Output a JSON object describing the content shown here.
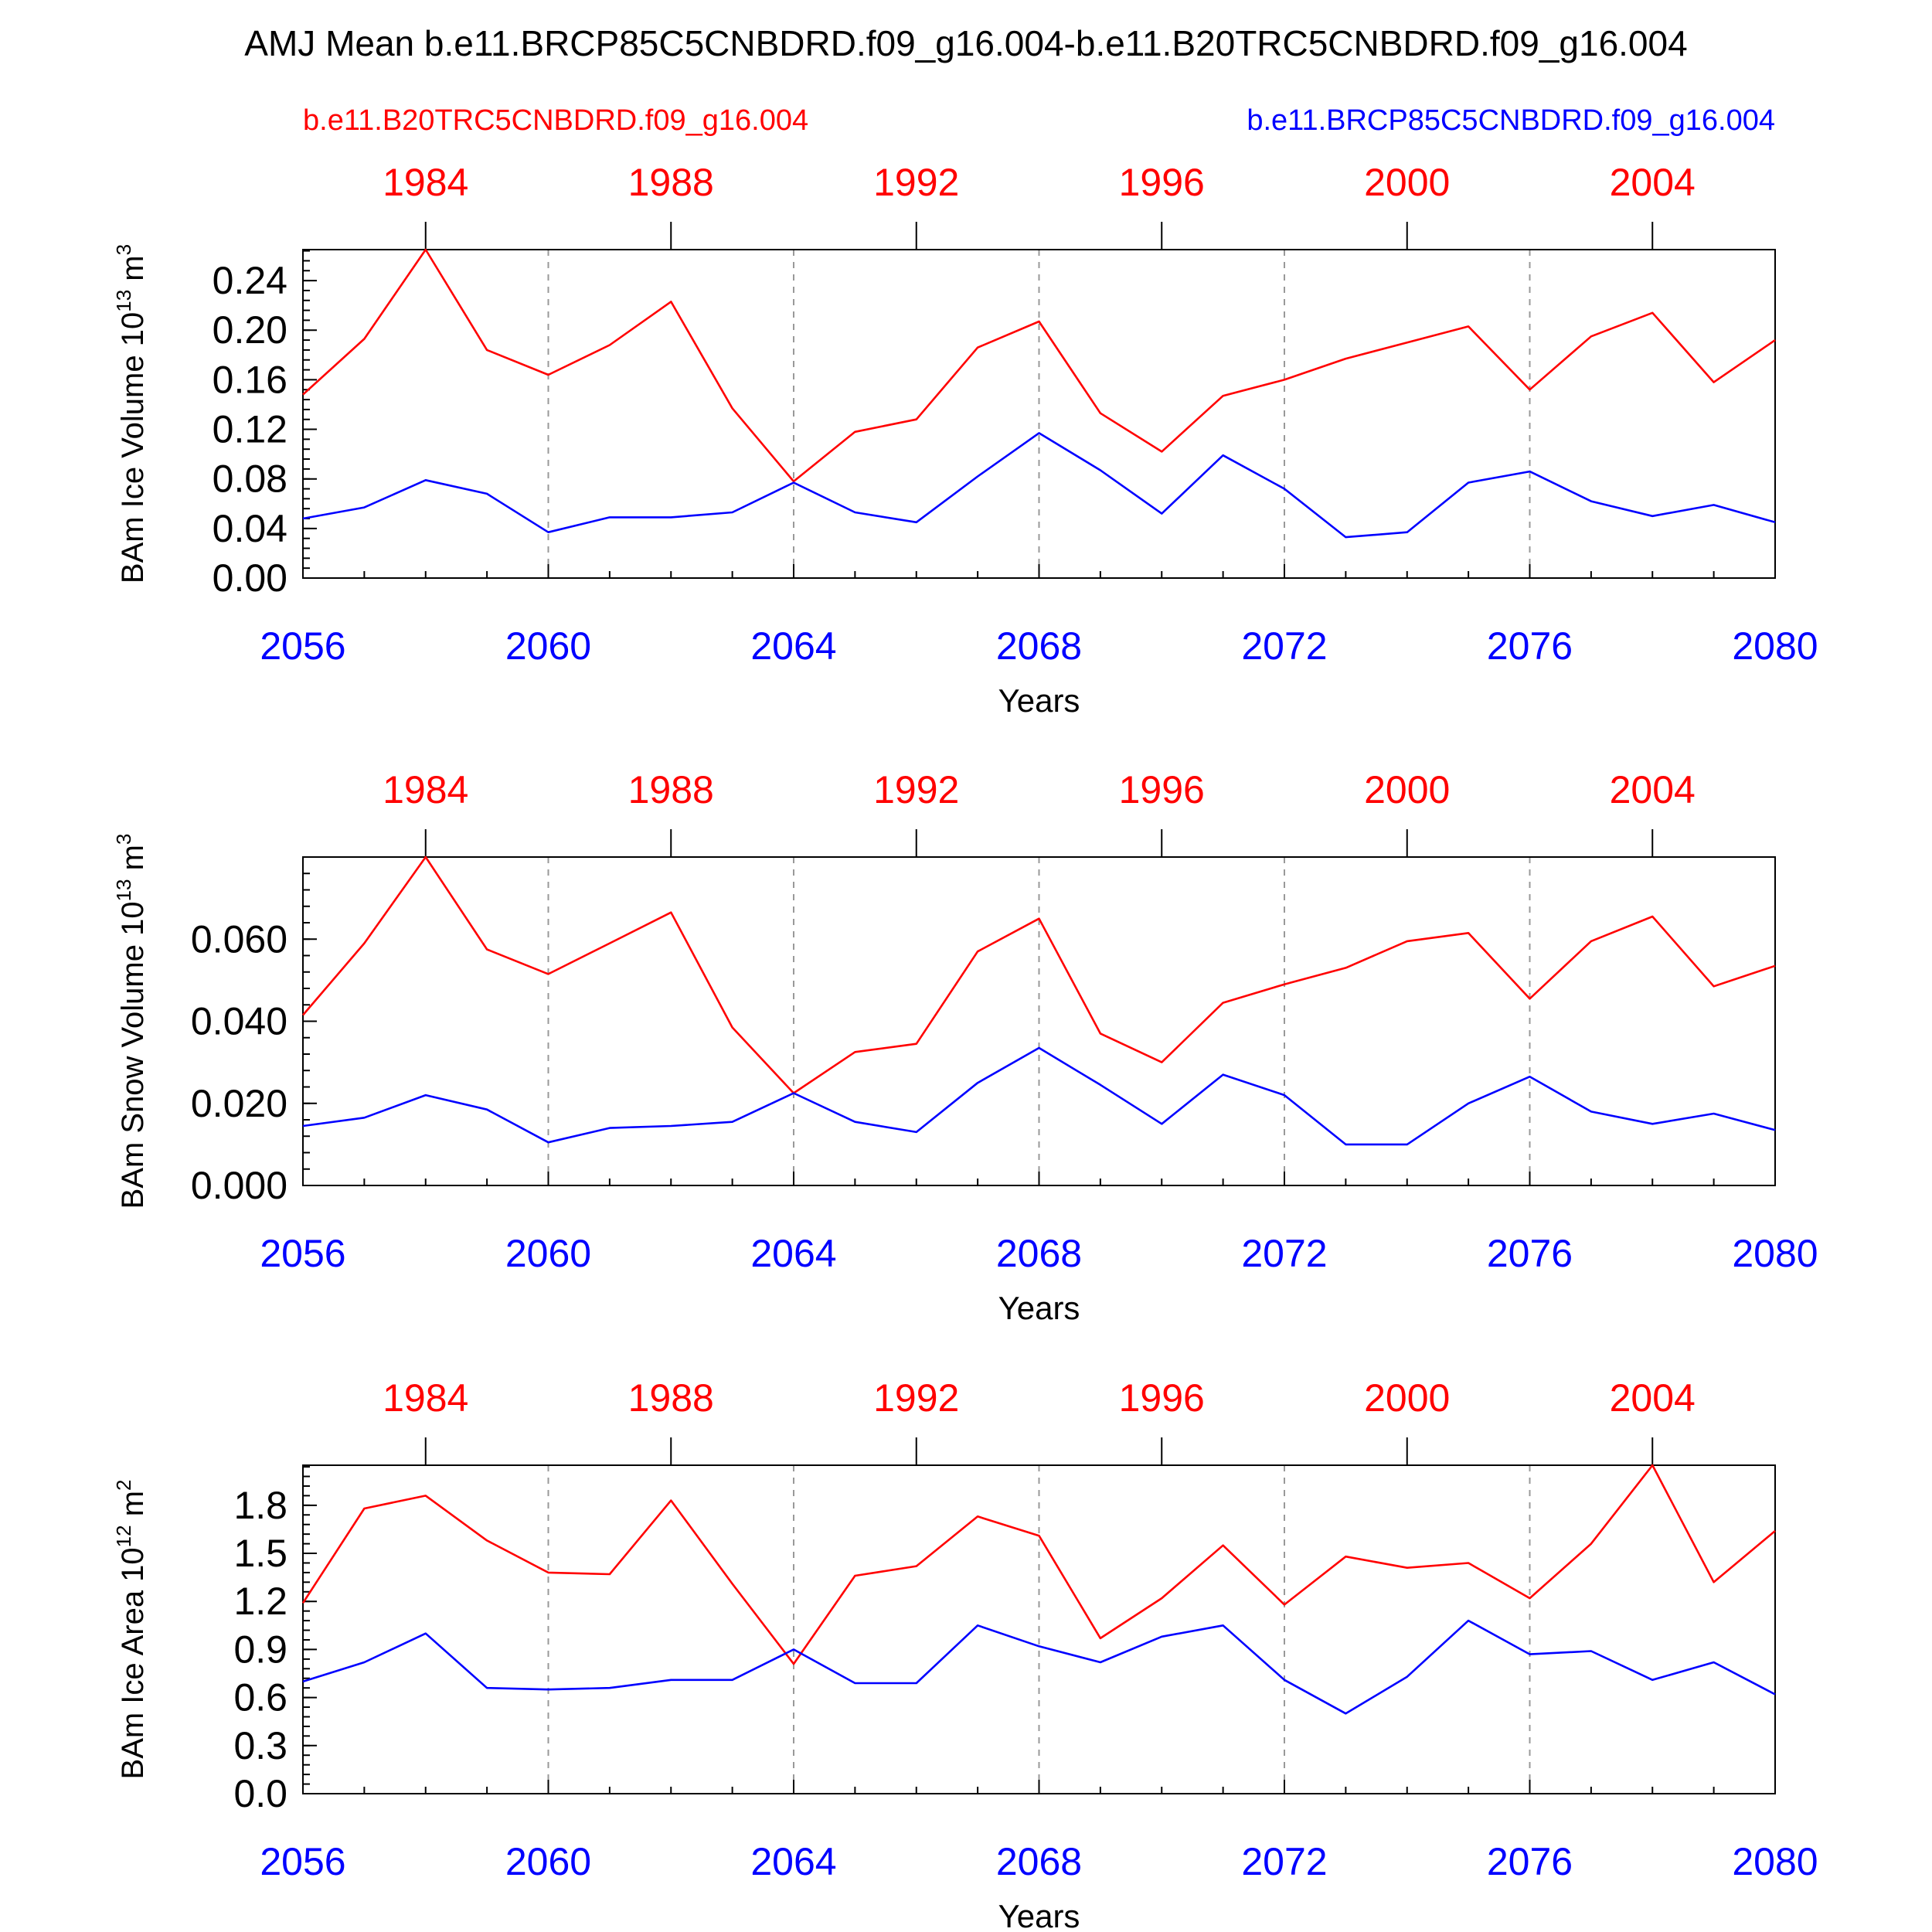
{
  "title": "AMJ Mean b.e11.BRCP85C5CNBDRD.f09_g16.004-b.e11.B20TRC5CNBDRD.f09_g16.004",
  "legend": {
    "left": "b.e11.B20TRC5CNBDRD.f09_g16.004",
    "right": "b.e11.BRCP85C5CNBDRD.f09_g16.004"
  },
  "colors": {
    "hist": "#ff0000",
    "future": "#0000ff",
    "axis": "#000000",
    "grid": "#999999"
  },
  "chart_data": [
    {
      "type": "line",
      "ylabel": "BAm Ice Volume 10",
      "ylabel_sup": "13",
      "ylabel_unit": " m",
      "ylabel_unit_sup": "3",
      "xlabel": "Years",
      "bottom_x_ticks": [
        "2056",
        "2060",
        "2064",
        "2068",
        "2072",
        "2076",
        "2080"
      ],
      "top_x_ticks": [
        "1984",
        "1988",
        "1992",
        "1996",
        "2000",
        "2004"
      ],
      "y_ticks": [
        "0.00",
        "0.04",
        "0.08",
        "0.12",
        "0.16",
        "0.20",
        "0.24"
      ],
      "ylim": [
        0,
        0.265
      ],
      "x": [
        2056,
        2057,
        2058,
        2059,
        2060,
        2061,
        2062,
        2063,
        2064,
        2065,
        2066,
        2067,
        2068,
        2069,
        2070,
        2071,
        2072,
        2073,
        2074,
        2075,
        2076,
        2077,
        2078,
        2079,
        2080
      ],
      "series": [
        {
          "name": "b.e11.B20TRC5CNBDRD.f09_g16.004",
          "color": "#ff0000",
          "values": [
            0.148,
            0.193,
            0.265,
            0.184,
            0.164,
            0.188,
            0.223,
            0.137,
            0.078,
            0.118,
            0.128,
            0.186,
            0.207,
            0.133,
            0.102,
            0.147,
            0.16,
            0.177,
            0.19,
            0.203,
            0.152,
            0.195,
            0.214,
            0.158,
            0.192
          ]
        },
        {
          "name": "b.e11.BRCP85C5CNBDRD.f09_g16.004",
          "color": "#0000ff",
          "values": [
            0.048,
            0.057,
            0.079,
            0.068,
            0.037,
            0.049,
            0.049,
            0.053,
            0.077,
            0.053,
            0.045,
            0.082,
            0.117,
            0.087,
            0.052,
            0.099,
            0.072,
            0.033,
            0.037,
            0.077,
            0.086,
            0.062,
            0.05,
            0.059,
            0.045
          ]
        }
      ]
    },
    {
      "type": "line",
      "ylabel": "BAm Snow Volume 10",
      "ylabel_sup": "13",
      "ylabel_unit": " m",
      "ylabel_unit_sup": "3",
      "xlabel": "Years",
      "bottom_x_ticks": [
        "2056",
        "2060",
        "2064",
        "2068",
        "2072",
        "2076",
        "2080"
      ],
      "top_x_ticks": [
        "1984",
        "1988",
        "1992",
        "1996",
        "2000",
        "2004"
      ],
      "y_ticks": [
        "0.000",
        "0.020",
        "0.040",
        "0.060"
      ],
      "ylim": [
        0,
        0.08
      ],
      "x": [
        2056,
        2057,
        2058,
        2059,
        2060,
        2061,
        2062,
        2063,
        2064,
        2065,
        2066,
        2067,
        2068,
        2069,
        2070,
        2071,
        2072,
        2073,
        2074,
        2075,
        2076,
        2077,
        2078,
        2079,
        2080
      ],
      "series": [
        {
          "name": "b.e11.B20TRC5CNBDRD.f09_g16.004",
          "color": "#ff0000",
          "values": [
            0.0415,
            0.059,
            0.08,
            0.0575,
            0.0515,
            0.059,
            0.0665,
            0.0385,
            0.0225,
            0.0325,
            0.0345,
            0.057,
            0.065,
            0.037,
            0.03,
            0.0445,
            0.049,
            0.053,
            0.0595,
            0.0615,
            0.0455,
            0.0595,
            0.0655,
            0.0485,
            0.0535
          ]
        },
        {
          "name": "b.e11.BRCP85C5CNBDRD.f09_g16.004",
          "color": "#0000ff",
          "values": [
            0.0145,
            0.0165,
            0.022,
            0.0185,
            0.0105,
            0.014,
            0.0145,
            0.0155,
            0.0225,
            0.0155,
            0.013,
            0.025,
            0.0335,
            0.0245,
            0.015,
            0.027,
            0.022,
            0.01,
            0.01,
            0.02,
            0.0265,
            0.018,
            0.015,
            0.0175,
            0.0135
          ]
        }
      ]
    },
    {
      "type": "line",
      "ylabel": "BAm Ice Area 10",
      "ylabel_sup": "12",
      "ylabel_unit": " m",
      "ylabel_unit_sup": "2",
      "xlabel": "Years",
      "bottom_x_ticks": [
        "2056",
        "2060",
        "2064",
        "2068",
        "2072",
        "2076",
        "2080"
      ],
      "top_x_ticks": [
        "1984",
        "1988",
        "1992",
        "1996",
        "2000",
        "2004"
      ],
      "y_ticks": [
        "0.0",
        "0.3",
        "0.6",
        "0.9",
        "1.2",
        "1.5",
        "1.8"
      ],
      "ylim": [
        0,
        2.05
      ],
      "x": [
        2056,
        2057,
        2058,
        2059,
        2060,
        2061,
        2062,
        2063,
        2064,
        2065,
        2066,
        2067,
        2068,
        2069,
        2070,
        2071,
        2072,
        2073,
        2074,
        2075,
        2076,
        2077,
        2078,
        2079,
        2080
      ],
      "series": [
        {
          "name": "b.e11.B20TRC5CNBDRD.f09_g16.004",
          "color": "#ff0000",
          "values": [
            1.19,
            1.78,
            1.86,
            1.58,
            1.38,
            1.37,
            1.83,
            1.31,
            0.81,
            1.36,
            1.42,
            1.73,
            1.61,
            0.97,
            1.22,
            1.55,
            1.18,
            1.48,
            1.41,
            1.44,
            1.22,
            1.56,
            2.05,
            1.32,
            1.64
          ]
        },
        {
          "name": "b.e11.BRCP85C5CNBDRD.f09_g16.004",
          "color": "#0000ff",
          "values": [
            0.7,
            0.82,
            1.0,
            0.66,
            0.65,
            0.66,
            0.71,
            0.71,
            0.9,
            0.69,
            0.69,
            1.05,
            0.92,
            0.82,
            0.98,
            1.05,
            0.71,
            0.5,
            0.73,
            1.08,
            0.87,
            0.89,
            0.71,
            0.82,
            0.62
          ]
        }
      ]
    }
  ]
}
